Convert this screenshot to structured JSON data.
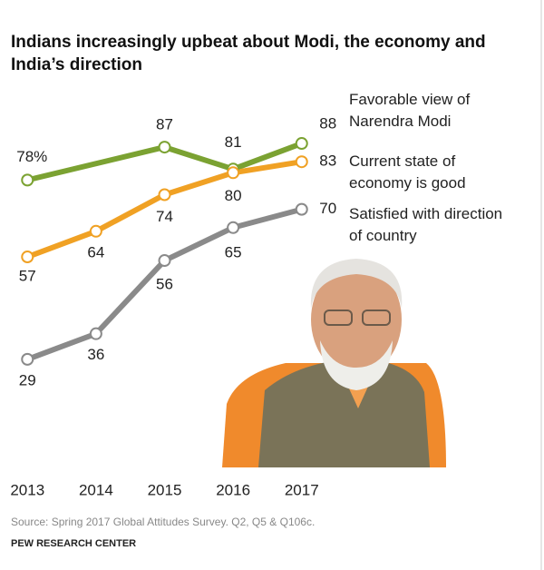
{
  "chart_data": {
    "type": "line",
    "title": "Indians increasingly upbeat about Modi, the economy and India’s direction",
    "xlim": [
      2012.6,
      2017.4
    ],
    "xticks": [
      2013,
      2014,
      2015,
      2016,
      2017
    ],
    "ylim": [
      25,
      90
    ],
    "series": [
      {
        "name": "Favorable view of Narendra Modi",
        "color": "#7ba232",
        "x": [
          2013,
          2015,
          2016,
          2017
        ],
        "values": [
          78,
          87,
          81,
          88
        ],
        "value_labels": [
          "78%",
          "87",
          "81",
          "88"
        ]
      },
      {
        "name": "Current state of economy is good",
        "color": "#f0a124",
        "x": [
          2013,
          2014,
          2015,
          2016,
          2017
        ],
        "values": [
          57,
          64,
          74,
          80,
          83
        ]
      },
      {
        "name": "Satisfied with direction of country",
        "color": "#8a8a8a",
        "x": [
          2013,
          2014,
          2015,
          2016,
          2017
        ],
        "values": [
          29,
          36,
          56,
          65,
          70
        ]
      }
    ],
    "source": "Source: Spring 2017 Global Attitudes Survey. Q2, Q5 & Q106c.",
    "organization": "PEW RESEARCH CENTER"
  }
}
